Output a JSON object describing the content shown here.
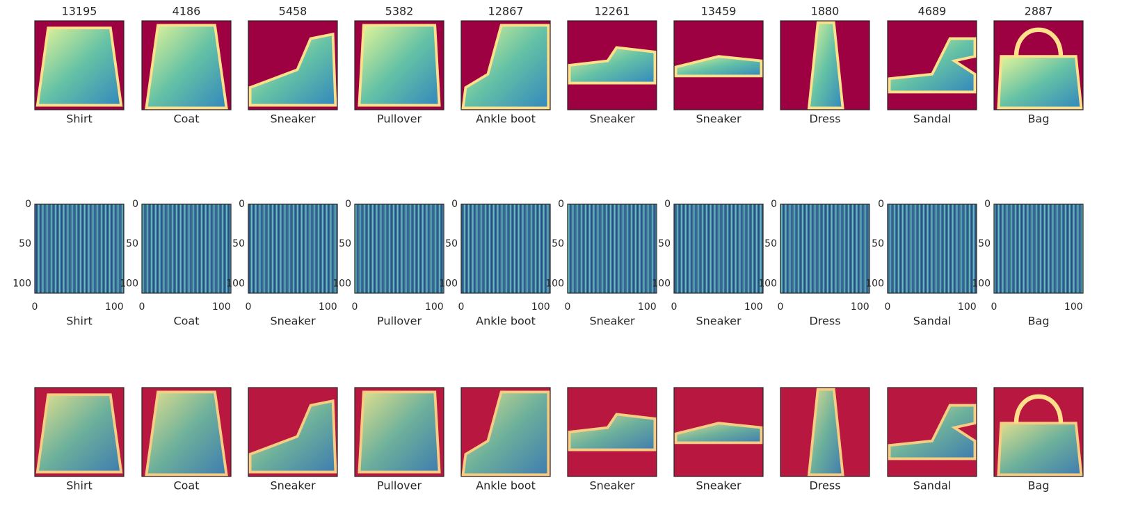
{
  "columns": [
    {
      "index": 13195,
      "label": "Shirt"
    },
    {
      "index": 4186,
      "label": "Coat"
    },
    {
      "index": 5458,
      "label": "Sneaker"
    },
    {
      "index": 5382,
      "label": "Pullover"
    },
    {
      "index": 12867,
      "label": "Ankle boot"
    },
    {
      "index": 12261,
      "label": "Sneaker"
    },
    {
      "index": 13459,
      "label": "Sneaker"
    },
    {
      "index": 1880,
      "label": "Dress"
    },
    {
      "index": 4689,
      "label": "Sandal"
    },
    {
      "index": 2887,
      "label": "Bag"
    }
  ],
  "middle_axis": {
    "xlim": [
      0,
      112
    ],
    "ylim": [
      0,
      112
    ],
    "xticks": [
      0,
      100
    ],
    "yticks": [
      0,
      50,
      100
    ]
  }
}
